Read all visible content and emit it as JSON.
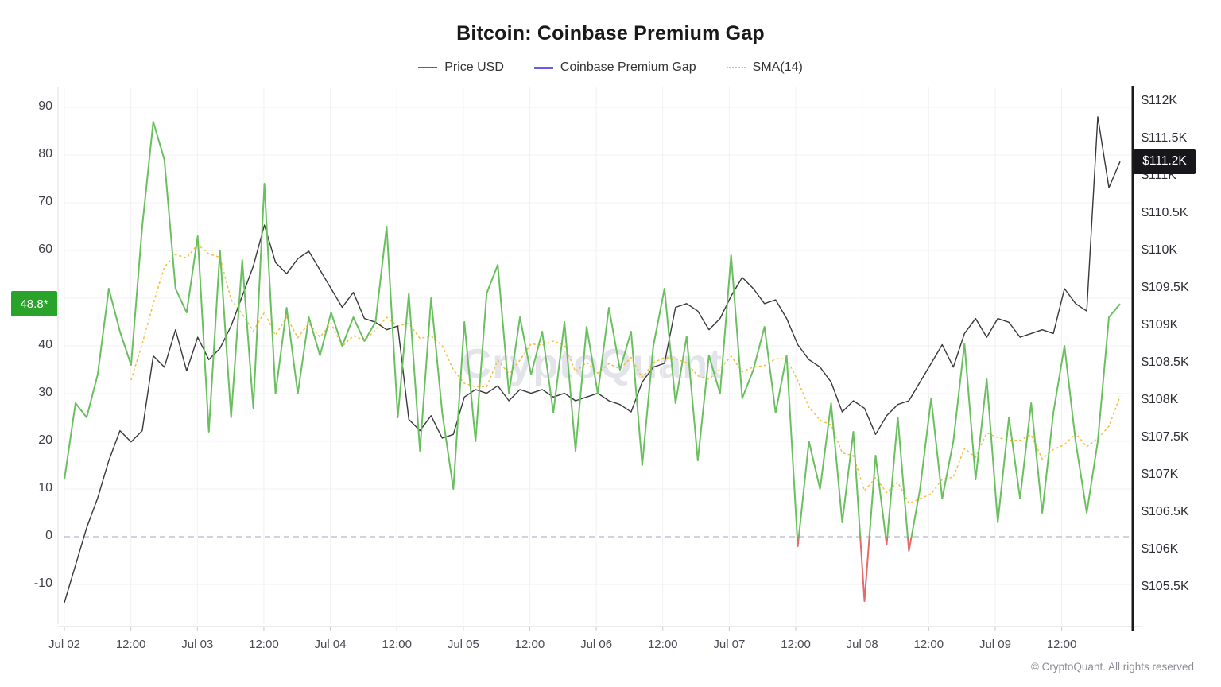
{
  "title": "Bitcoin: Coinbase Premium Gap",
  "legend": {
    "items": [
      {
        "label": "Price USD",
        "color": "#636363",
        "style": "solid"
      },
      {
        "label": "Coinbase Premium Gap",
        "color": "#655ce6",
        "style": "solid"
      },
      {
        "label": "SMA(14)",
        "color": "#f4bf3b",
        "style": "dotted"
      }
    ]
  },
  "watermark": "CryptoQuant",
  "footer": {
    "copyright": "© CryptoQuant. All rights reserved"
  },
  "badges": {
    "gap": {
      "text": "48.8*",
      "bg": "#2aa32a"
    },
    "price": {
      "text": "$111.2K",
      "bg": "#17171b"
    }
  },
  "chart_data": {
    "type": "line",
    "title": "Bitcoin: Coinbase Premium Gap",
    "sampling": "estimated from pixels; one point per 2 hours starting Jul 02 00:00",
    "x_tick_labels": [
      "Jul 02",
      "12:00",
      "Jul 03",
      "12:00",
      "Jul 04",
      "12:00",
      "Jul 05",
      "12:00",
      "Jul 06",
      "12:00",
      "Jul 07",
      "12:00",
      "Jul 08",
      "12:00",
      "Jul 09",
      "12:00"
    ],
    "x_ticks_every_n_samples": 6,
    "left_axis": {
      "series": "Coinbase Premium Gap",
      "ticks": [
        90,
        80,
        70,
        60,
        50,
        40,
        30,
        20,
        10,
        0,
        -10
      ],
      "zero_line_dashed": true,
      "grid": true
    },
    "right_axis": {
      "series": "Price USD",
      "tick_values_k": [
        112,
        111.5,
        111,
        110.5,
        110,
        109.5,
        109,
        108.5,
        108,
        107.5,
        107,
        106.5,
        106,
        105.5
      ],
      "tick_labels": [
        "$112K",
        "$111.5K",
        "$111K",
        "$110.5K",
        "$110K",
        "$109.5K",
        "$109K",
        "$108.5K",
        "$108K",
        "$107.5K",
        "$107K",
        "$106.5K",
        "$106K",
        "$105.5K"
      ]
    },
    "series": [
      {
        "name": "Price USD",
        "axis": "right",
        "color": "#38383d",
        "unit": "USD (thousands)",
        "values": [
          105.3,
          105.8,
          106.3,
          106.7,
          107.2,
          107.6,
          107.45,
          107.6,
          108.6,
          108.45,
          108.95,
          108.4,
          108.85,
          108.55,
          108.7,
          109.0,
          109.4,
          109.8,
          110.35,
          109.85,
          109.7,
          109.9,
          110.0,
          109.75,
          109.5,
          109.25,
          109.45,
          109.1,
          109.05,
          108.95,
          109.0,
          107.75,
          107.6,
          107.8,
          107.5,
          107.55,
          108.05,
          108.15,
          108.1,
          108.2,
          108.0,
          108.15,
          108.1,
          108.15,
          108.05,
          108.1,
          108.0,
          108.05,
          108.1,
          108.0,
          107.95,
          107.85,
          108.25,
          108.45,
          108.5,
          109.25,
          109.3,
          109.2,
          108.95,
          109.1,
          109.4,
          109.65,
          109.5,
          109.3,
          109.35,
          109.1,
          108.75,
          108.55,
          108.45,
          108.25,
          107.85,
          108.0,
          107.9,
          107.55,
          107.8,
          107.95,
          108.0,
          108.25,
          108.5,
          108.75,
          108.45,
          108.9,
          109.1,
          108.85,
          109.1,
          109.05,
          108.85,
          108.9,
          108.95,
          108.9,
          109.5,
          109.3,
          109.2,
          111.8,
          110.85,
          111.2
        ]
      },
      {
        "name": "Coinbase Premium Gap",
        "axis": "left",
        "positive_color": "#6abf5f",
        "negative_color": "#e56a6a",
        "values": [
          12,
          28,
          25,
          34,
          52,
          43,
          36,
          65,
          87,
          79,
          52,
          47,
          63,
          22,
          60,
          25,
          58,
          27,
          74,
          30,
          48,
          30,
          46,
          38,
          47,
          40,
          46,
          41,
          45,
          65,
          25,
          51,
          18,
          50,
          26,
          10,
          45,
          20,
          51,
          57,
          30,
          46,
          34,
          43,
          26,
          45,
          18,
          44,
          30,
          48,
          35,
          43,
          15,
          40,
          52,
          28,
          42,
          16,
          38,
          30,
          59,
          29,
          35,
          44,
          26,
          38,
          -2,
          20,
          10,
          28,
          3,
          22,
          -13.5,
          17,
          -1.7,
          25,
          -3,
          10,
          29,
          8,
          20,
          40.5,
          12,
          33,
          3,
          25,
          8,
          28,
          5,
          26,
          40,
          20,
          5,
          20,
          46,
          48.8
        ]
      },
      {
        "name": "SMA(14)",
        "axis": "left",
        "color": "#f4bf3b",
        "style": "dashed",
        "derivation": "14h trailing simple moving average of the Coinbase Premium Gap series (computed from the gap values above)"
      }
    ],
    "zero_line": 0,
    "last_values": {
      "premium_gap": 48.8,
      "price_usd_k": 111.2
    }
  }
}
